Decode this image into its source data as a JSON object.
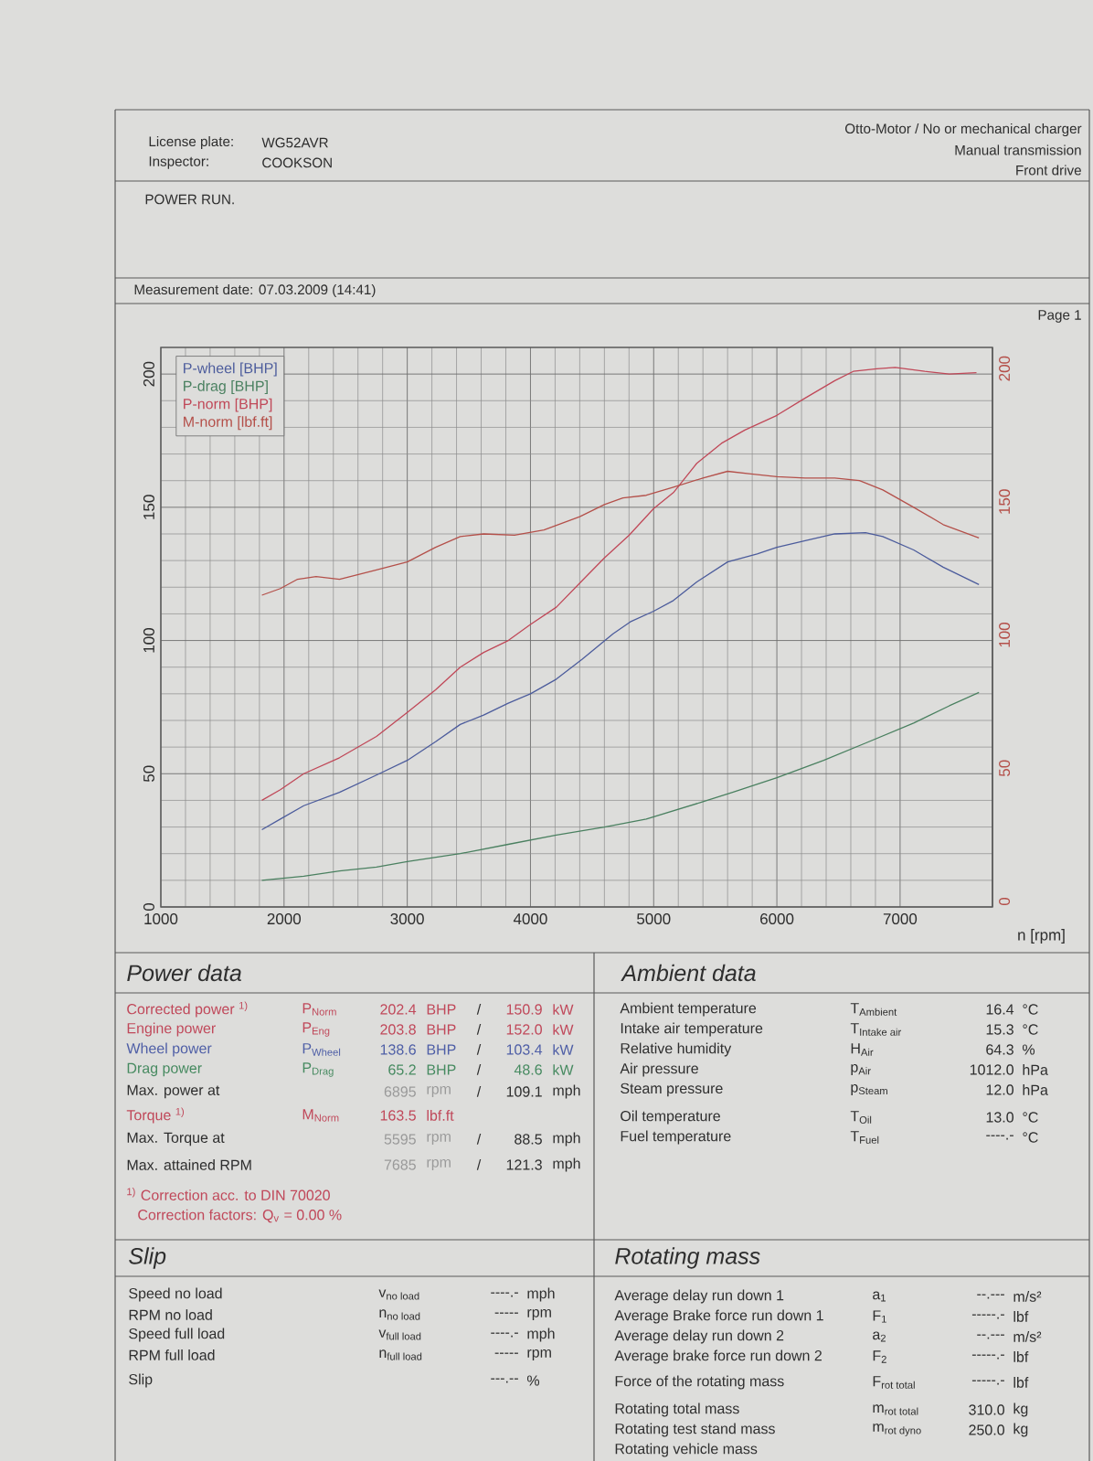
{
  "chart_data": [
    {
      "type": "other",
      "annotations": [
        "License plate:",
        "WG52AVR",
        "Inspector:",
        "COOKSON",
        "Otto-Motor / No or mechanical charger",
        "Manual transmission",
        "Front drive",
        "POWER RUN.",
        "Measurement date: 07.03.2009 (14:41)",
        "Page 1"
      ]
    },
    {
      "type": "line",
      "xlabel": "n [rpm]",
      "xlim": [
        1000,
        7750
      ],
      "ylim": [
        0,
        210
      ],
      "xticks": [
        1000,
        2000,
        3000,
        4000,
        5000,
        6000,
        7000
      ],
      "yticks": [
        0,
        50,
        100,
        150,
        200
      ],
      "y2lim": [
        0,
        210
      ],
      "y2ticks": [
        0,
        50,
        100,
        150,
        200
      ],
      "grid": true,
      "legend": "top left",
      "series": [
        {
          "name": "P-wheel [BHP]",
          "color": "#4c5c9c",
          "x": [
            1820,
            1970,
            2160,
            2450,
            2750,
            3000,
            3230,
            3430,
            3620,
            3820,
            4000,
            4210,
            4420,
            4670,
            4810,
            5000,
            5160,
            5350,
            5600,
            5840,
            6000,
            6230,
            6470,
            6720,
            6860,
            7110,
            7350,
            7640
          ],
          "values": [
            29,
            33,
            38,
            43,
            49.5,
            55,
            62,
            68.5,
            72,
            76.5,
            80,
            85.5,
            93,
            102.5,
            107,
            111,
            115,
            122,
            129.5,
            132.5,
            135,
            137.5,
            140,
            140.5,
            139,
            134,
            127.5,
            121
          ]
        },
        {
          "name": "P-drag [BHP]",
          "color": "#4a8060",
          "x": [
            1820,
            2160,
            2450,
            2750,
            3000,
            3430,
            3820,
            4210,
            4600,
            4940,
            5400,
            5640,
            6000,
            6380,
            6720,
            7110,
            7400,
            7640
          ],
          "values": [
            10,
            11.5,
            13.5,
            15,
            17,
            20,
            23.5,
            27,
            30,
            33,
            39.5,
            43,
            48.5,
            55,
            61.5,
            69,
            75.5,
            80.5
          ]
        },
        {
          "name": "P-norm [BHP]",
          "color": "#c04858",
          "x": [
            1820,
            1970,
            2160,
            2450,
            2750,
            3000,
            3230,
            3430,
            3620,
            3820,
            4000,
            4210,
            4420,
            4600,
            4800,
            5000,
            5160,
            5350,
            5550,
            5740,
            6000,
            6230,
            6470,
            6620,
            6810,
            6960,
            7200,
            7400,
            7620
          ],
          "values": [
            40,
            44,
            50,
            56,
            64,
            73,
            81.5,
            90,
            95.5,
            100,
            106,
            112.5,
            122.5,
            131,
            139.5,
            149.5,
            155.5,
            166.5,
            174,
            179,
            184.5,
            191,
            197.5,
            201,
            202,
            202.5,
            201,
            200,
            200.5
          ]
        },
        {
          "name": "M-norm [lbf.ft]",
          "color": "#b4504a",
          "axis": "y2",
          "x": [
            1820,
            1970,
            2110,
            2260,
            2450,
            2750,
            3000,
            3230,
            3430,
            3620,
            3870,
            4110,
            4400,
            4600,
            4750,
            4940,
            5160,
            5400,
            5600,
            5790,
            6000,
            6230,
            6470,
            6670,
            6860,
            7110,
            7350,
            7640
          ],
          "values": [
            117,
            119.5,
            123,
            124,
            123,
            126.5,
            129.5,
            135,
            139,
            140,
            139.5,
            141.5,
            146.5,
            151,
            153.5,
            154.5,
            157.5,
            161,
            163.5,
            162.5,
            161.5,
            161,
            161,
            160,
            156.5,
            150,
            143.5,
            138.5
          ]
        }
      ]
    },
    {
      "type": "other",
      "title": "Power data",
      "annotations": [
        "Corrected power $^{1)}$",
        "P$_{Norm}$",
        "202.4",
        "BHP",
        "/",
        "150.9",
        "kW",
        "Engine power",
        "P$_{Eng}$",
        "203.8",
        "BHP",
        "/",
        "152.0",
        "kW",
        "Wheel power",
        "P$_{Wheel}$",
        "138.6",
        "BHP",
        "/",
        "103.4",
        "kW",
        "Drag power",
        "P$_{Drag}$",
        "65.2",
        "BHP",
        "/",
        "48.6",
        "kW",
        "Max. power at",
        "6895",
        "rpm",
        "/",
        "109.1",
        "mph",
        "Torque $^{1)}$",
        "M$_{Norm}$",
        "163.5",
        "lbf.ft",
        "Max. Torque at",
        "5595",
        "rpm",
        "/",
        "88.5",
        "mph",
        "Max. attained RPM",
        "7685",
        "rpm",
        "/",
        "121.3",
        "mph",
        "$^{1)}$ Correction acc. to DIN 70020",
        "Correction factors: Q$_{v}$ =  0.00 %"
      ]
    },
    {
      "type": "other",
      "title": "Ambient data",
      "annotations": [
        "Ambient temperature",
        "T$_{Ambient}$",
        "16.4",
        "°C",
        "Intake air temperature",
        "T$_{Intake air}$",
        "15.3",
        "°C",
        "Relative humidity",
        "H$_{Air}$",
        "64.3",
        "%",
        "Air pressure",
        "p$_{Air}$",
        "1012.0",
        "hPa",
        "Steam pressure",
        "p$_{Steam}$",
        "12.0",
        "hPa",
        "Oil temperature",
        "T$_{Oil}$",
        "13.0",
        "°C",
        "Fuel temperature",
        "T$_{Fuel}$",
        "----.-",
        "°C"
      ]
    },
    {
      "type": "other",
      "title": "Slip",
      "annotations": [
        "Speed no load",
        "v$_{no load}$",
        "----.-",
        "mph",
        "RPM no load",
        "n$_{no load}$",
        "-----",
        "rpm",
        "Speed full load",
        "v$_{full load}$",
        "----.-",
        "mph",
        "RPM full load",
        "n$_{full load}$",
        "-----",
        "rpm",
        "Slip",
        "---.--",
        "%"
      ]
    },
    {
      "type": "other",
      "title": "Rotating mass",
      "annotations": [
        "Average delay run down 1",
        "a$_{1}$",
        "--.---",
        "m/s²",
        "Average Brake force run down 1",
        "F$_{1}$",
        "-----.-",
        "lbf",
        "Average delay run down 2",
        "a$_{2}$",
        "--.---",
        "m/s²",
        "Average brake force run down 2",
        "F$_{2}$",
        "-----.-",
        "lbf",
        "Force of the rotating mass",
        "F$_{rot total}$",
        "-----.-",
        "lbf",
        "Rotating total mass",
        "m$_{rot total}$",
        "310.0",
        "kg",
        "Rotating test stand mass",
        "m$_{rot dyno}$",
        "250.0",
        "kg",
        "Rotating vehicle mass"
      ]
    }
  ]
}
